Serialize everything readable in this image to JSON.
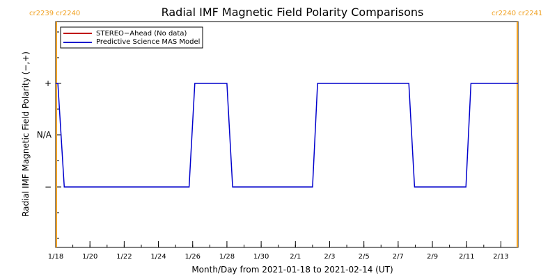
{
  "chart_data": {
    "type": "line",
    "title": "Radial IMF Magnetic Field Polarity Comparisons",
    "xlabel": "Month/Day from 2021-01-18 to 2021-02-14 (UT)",
    "ylabel": "Radial IMF Magnetic Field Polarity (−,+)",
    "x_range": [
      "2021-01-18",
      "2021-02-14"
    ],
    "x_ticks": [
      {
        "date": "2021-01-18",
        "label": "1/18"
      },
      {
        "date": "2021-01-20",
        "label": "1/20"
      },
      {
        "date": "2021-01-22",
        "label": "1/22"
      },
      {
        "date": "2021-01-24",
        "label": "1/24"
      },
      {
        "date": "2021-01-26",
        "label": "1/26"
      },
      {
        "date": "2021-01-28",
        "label": "1/28"
      },
      {
        "date": "2021-01-30",
        "label": "1/30"
      },
      {
        "date": "2021-02-01",
        "label": "2/1"
      },
      {
        "date": "2021-02-03",
        "label": "2/3"
      },
      {
        "date": "2021-02-05",
        "label": "2/5"
      },
      {
        "date": "2021-02-07",
        "label": "2/7"
      },
      {
        "date": "2021-02-09",
        "label": "2/9"
      },
      {
        "date": "2021-02-11",
        "label": "2/11"
      },
      {
        "date": "2021-02-13",
        "label": "2/13"
      }
    ],
    "y_categories": [
      "−",
      "N/A",
      "+"
    ],
    "legend": {
      "placement": "top-left",
      "entries": [
        {
          "name": "STEREO−Ahead (No data)",
          "color": "#c00000"
        },
        {
          "name": "Predictive Science MAS Model",
          "color": "#0000cc"
        }
      ]
    },
    "series": [
      {
        "name": "Predictive Science MAS Model",
        "color": "#0000cc",
        "points": [
          [
            "2021-01-18 00:00",
            "+"
          ],
          [
            "2021-01-18 03:00",
            "+"
          ],
          [
            "2021-01-18 12:00",
            "−"
          ],
          [
            "2021-01-25 19:00",
            "−"
          ],
          [
            "2021-01-26 03:00",
            "+"
          ],
          [
            "2021-01-28 00:00",
            "+"
          ],
          [
            "2021-01-28 08:00",
            "−"
          ],
          [
            "2021-02-02 00:00",
            "−"
          ],
          [
            "2021-02-02 07:00",
            "+"
          ],
          [
            "2021-02-07 15:00",
            "+"
          ],
          [
            "2021-02-07 23:00",
            "−"
          ],
          [
            "2021-02-10 23:00",
            "−"
          ],
          [
            "2021-02-11 06:00",
            "+"
          ],
          [
            "2021-02-14 00:00",
            "+"
          ]
        ]
      }
    ],
    "carrington_markers": {
      "color": "#f0a020",
      "left": {
        "date": "2021-01-18",
        "label": "cr2239 cr2240"
      },
      "right": {
        "date": "2021-02-14",
        "label": "cr2240 cr2241"
      }
    }
  }
}
